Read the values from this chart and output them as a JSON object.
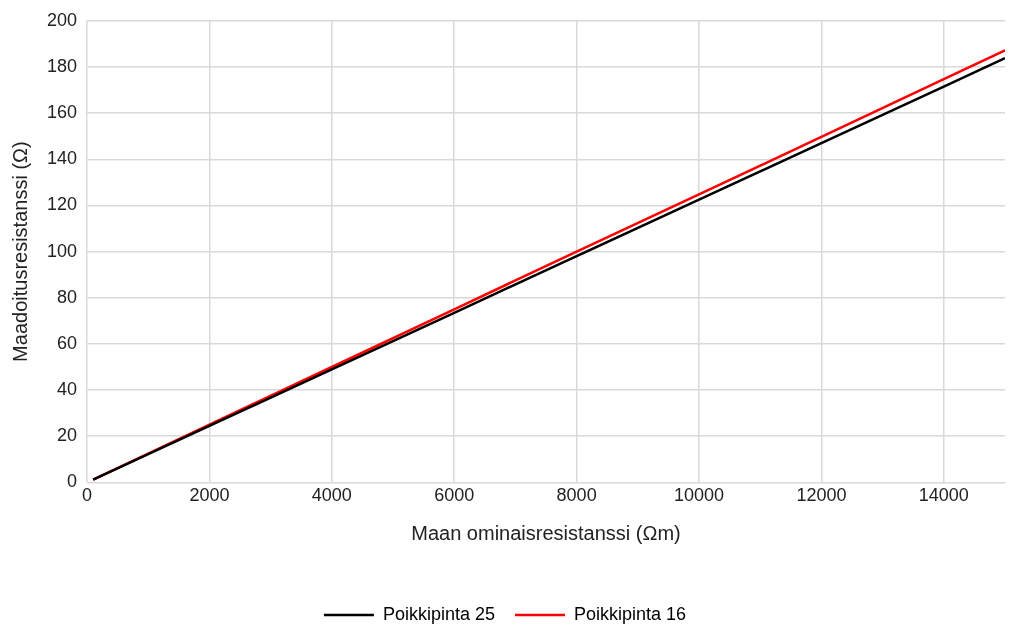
{
  "chart_data": {
    "type": "line",
    "xlabel": "Maan ominaisresistanssi (Ωm)",
    "ylabel": "Maadoitusresistanssi (Ω)",
    "x": [
      100,
      1000,
      2000,
      4000,
      6000,
      8000,
      10000,
      12000,
      14000,
      15000
    ],
    "series": [
      {
        "name": "Poikkipinta 25",
        "color": "#000000",
        "values": [
          1.2,
          12.3,
          24.5,
          49,
          73.5,
          98,
          122.5,
          147,
          171.5,
          183.8
        ]
      },
      {
        "name": "Poikkipinta 16",
        "color": "#ff0000",
        "values": [
          1.25,
          12.5,
          25,
          50,
          75,
          100,
          124.8,
          149.7,
          174.7,
          187.2
        ]
      }
    ],
    "xlim": [
      0,
      15000
    ],
    "xticks": [
      0,
      2000,
      4000,
      6000,
      8000,
      10000,
      12000,
      14000
    ],
    "ylim": [
      0,
      200
    ],
    "yticks": [
      0,
      20,
      40,
      60,
      80,
      100,
      120,
      140,
      160,
      180,
      200
    ],
    "grid": true,
    "legend": "bottom",
    "marker": "none",
    "line_style": "solid"
  }
}
